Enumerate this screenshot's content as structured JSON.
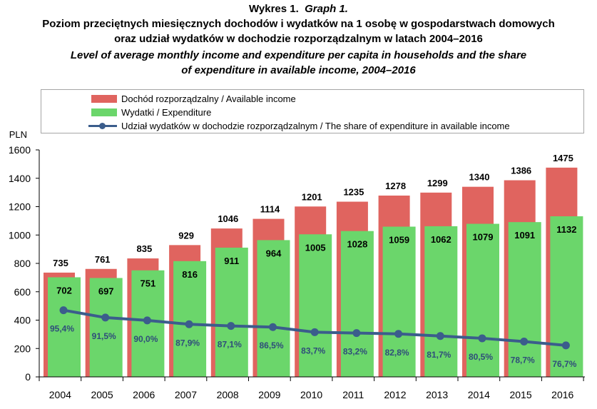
{
  "header": {
    "graph_label_pl": "Wykres 1.",
    "graph_label_en": "Graph 1.",
    "title_pl_line1": "Poziom przeciętnych miesięcznych dochodów i wydatków na 1 osobę w gospodarstwach domowych",
    "title_pl_line2": "oraz udział wydatków w dochodzie rozporządzalnym w latach 2004–2016",
    "title_en_line1": "Level of average monthly income and expenditure per capita in households and the share",
    "title_en_line2": "of expenditure in available income, 2004–2016"
  },
  "legend": {
    "income_label": "Dochód rozporządzalny / Available income",
    "expenditure_label": "Wydatki / Expenditure",
    "share_label": "Udział wydatków w dochodzie rozporządzalnym / The share of expenditure in available income"
  },
  "colors": {
    "income": "#e0645f",
    "expenditure": "#6bd66b",
    "share_line": "#3b5d8c",
    "share_label": "#2f4d7a"
  },
  "chart_data": {
    "type": "bar",
    "categories": [
      "2004",
      "2005",
      "2006",
      "2007",
      "2008",
      "2009",
      "2010",
      "2011",
      "2012",
      "2013",
      "2014",
      "2015",
      "2016"
    ],
    "series": [
      {
        "name": "Dochód rozporządzalny / Available income",
        "values": [
          735,
          761,
          835,
          929,
          1046,
          1114,
          1201,
          1235,
          1278,
          1299,
          1340,
          1386,
          1475
        ]
      },
      {
        "name": "Wydatki / Expenditure",
        "values": [
          702,
          697,
          751,
          816,
          911,
          964,
          1005,
          1028,
          1059,
          1062,
          1079,
          1091,
          1132
        ]
      },
      {
        "name": "Udział wydatków w dochodzie rozporządzalnym / The share of expenditure in available income",
        "type": "line",
        "values": [
          95.4,
          91.5,
          90.0,
          87.9,
          87.1,
          86.5,
          83.7,
          83.2,
          82.8,
          81.7,
          80.5,
          78.7,
          76.7
        ],
        "labels": [
          "95,4%",
          "91,5%",
          "90,0%",
          "87,9%",
          "87,1%",
          "86,5%",
          "83,7%",
          "83,2%",
          "82,8%",
          "81,7%",
          "80,5%",
          "78,7%",
          "76,7%"
        ],
        "plotted_on_y": [
          470,
          418,
          398,
          371,
          359,
          351,
          315,
          309,
          303,
          288,
          272,
          249,
          222
        ]
      }
    ],
    "ylabel": "PLN",
    "ylim": [
      0,
      1600
    ],
    "yticks": [
      0,
      200,
      400,
      600,
      800,
      1000,
      1200,
      1400,
      1600
    ],
    "grid": false,
    "legend_position": "top"
  }
}
